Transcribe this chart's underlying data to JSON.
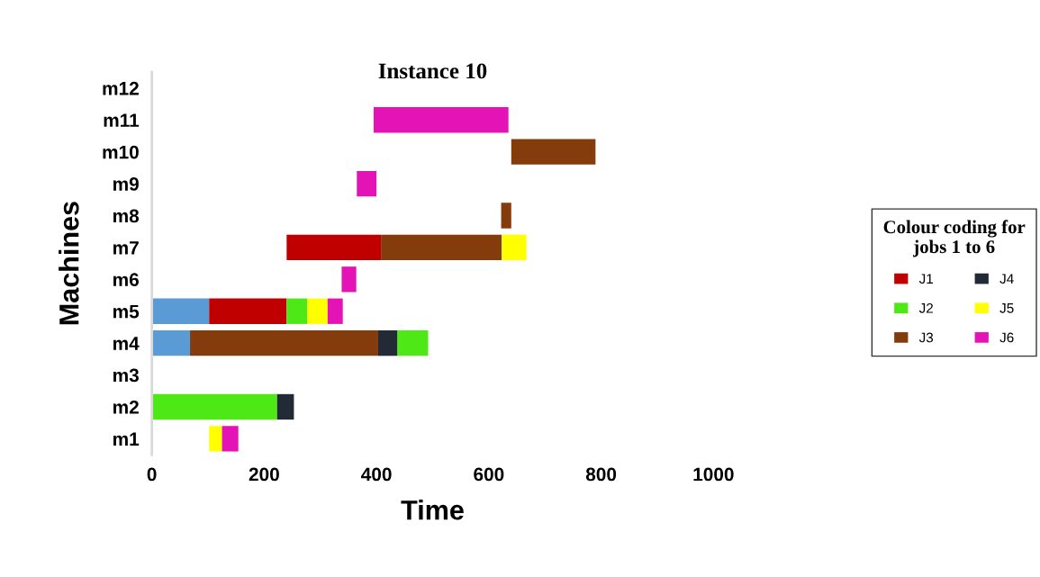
{
  "chart_data": {
    "type": "bar",
    "orientation": "horizontal",
    "title": "Instance 10",
    "xlabel": "Time",
    "ylabel": "Machines",
    "categories": [
      "m12",
      "m11",
      "m10",
      "m9",
      "m8",
      "m7",
      "m6",
      "m5",
      "m4",
      "m3",
      "m2",
      "m1"
    ],
    "series": [
      {
        "color": "#5b9bd5",
        "base": [
          null,
          null,
          null,
          null,
          null,
          null,
          null,
          0,
          0,
          null,
          null,
          null
        ],
        "values": [
          null,
          null,
          null,
          null,
          null,
          null,
          null,
          102,
          68,
          null,
          null,
          null
        ]
      },
      {
        "name": "J1",
        "color": "#c00000",
        "base": [
          null,
          null,
          null,
          null,
          null,
          240,
          null,
          102,
          null,
          null,
          null,
          null
        ],
        "values": [
          null,
          null,
          null,
          null,
          null,
          168,
          null,
          138,
          null,
          null,
          null,
          null
        ]
      },
      {
        "name": "J2",
        "color": "#4fe817",
        "base": [
          null,
          null,
          null,
          null,
          null,
          null,
          null,
          240,
          437,
          null,
          0,
          null
        ],
        "values": [
          null,
          null,
          null,
          null,
          null,
          null,
          null,
          37,
          55,
          null,
          223,
          null
        ]
      },
      {
        "name": "J3",
        "color": "#843c0c",
        "base": [
          null,
          null,
          640,
          null,
          622,
          408,
          null,
          null,
          68,
          null,
          null,
          null
        ],
        "values": [
          null,
          null,
          150,
          null,
          18,
          215,
          null,
          null,
          335,
          null,
          null,
          null
        ]
      },
      {
        "name": "J4",
        "color": "#222a35",
        "base": [
          null,
          null,
          null,
          null,
          null,
          null,
          null,
          null,
          403,
          null,
          223,
          null
        ],
        "values": [
          null,
          null,
          null,
          null,
          null,
          null,
          null,
          null,
          34,
          null,
          30,
          null
        ]
      },
      {
        "name": "J5",
        "color": "#ffff00",
        "base": [
          null,
          null,
          null,
          null,
          null,
          623,
          null,
          277,
          null,
          null,
          null,
          102
        ],
        "values": [
          null,
          null,
          null,
          null,
          null,
          44,
          null,
          36,
          null,
          null,
          null,
          23
        ]
      },
      {
        "name": "J6",
        "color": "#e313b5",
        "base": [
          null,
          395,
          null,
          365,
          null,
          null,
          338,
          313,
          null,
          null,
          null,
          125
        ],
        "values": [
          null,
          240,
          null,
          35,
          null,
          null,
          26,
          27,
          null,
          null,
          null,
          29
        ]
      }
    ],
    "xlim": [
      0,
      1000
    ],
    "xticks": [
      0,
      200,
      400,
      600,
      800,
      1000
    ],
    "legend": "right",
    "legend_title": "Colour coding for\njobs 1 to 6"
  }
}
